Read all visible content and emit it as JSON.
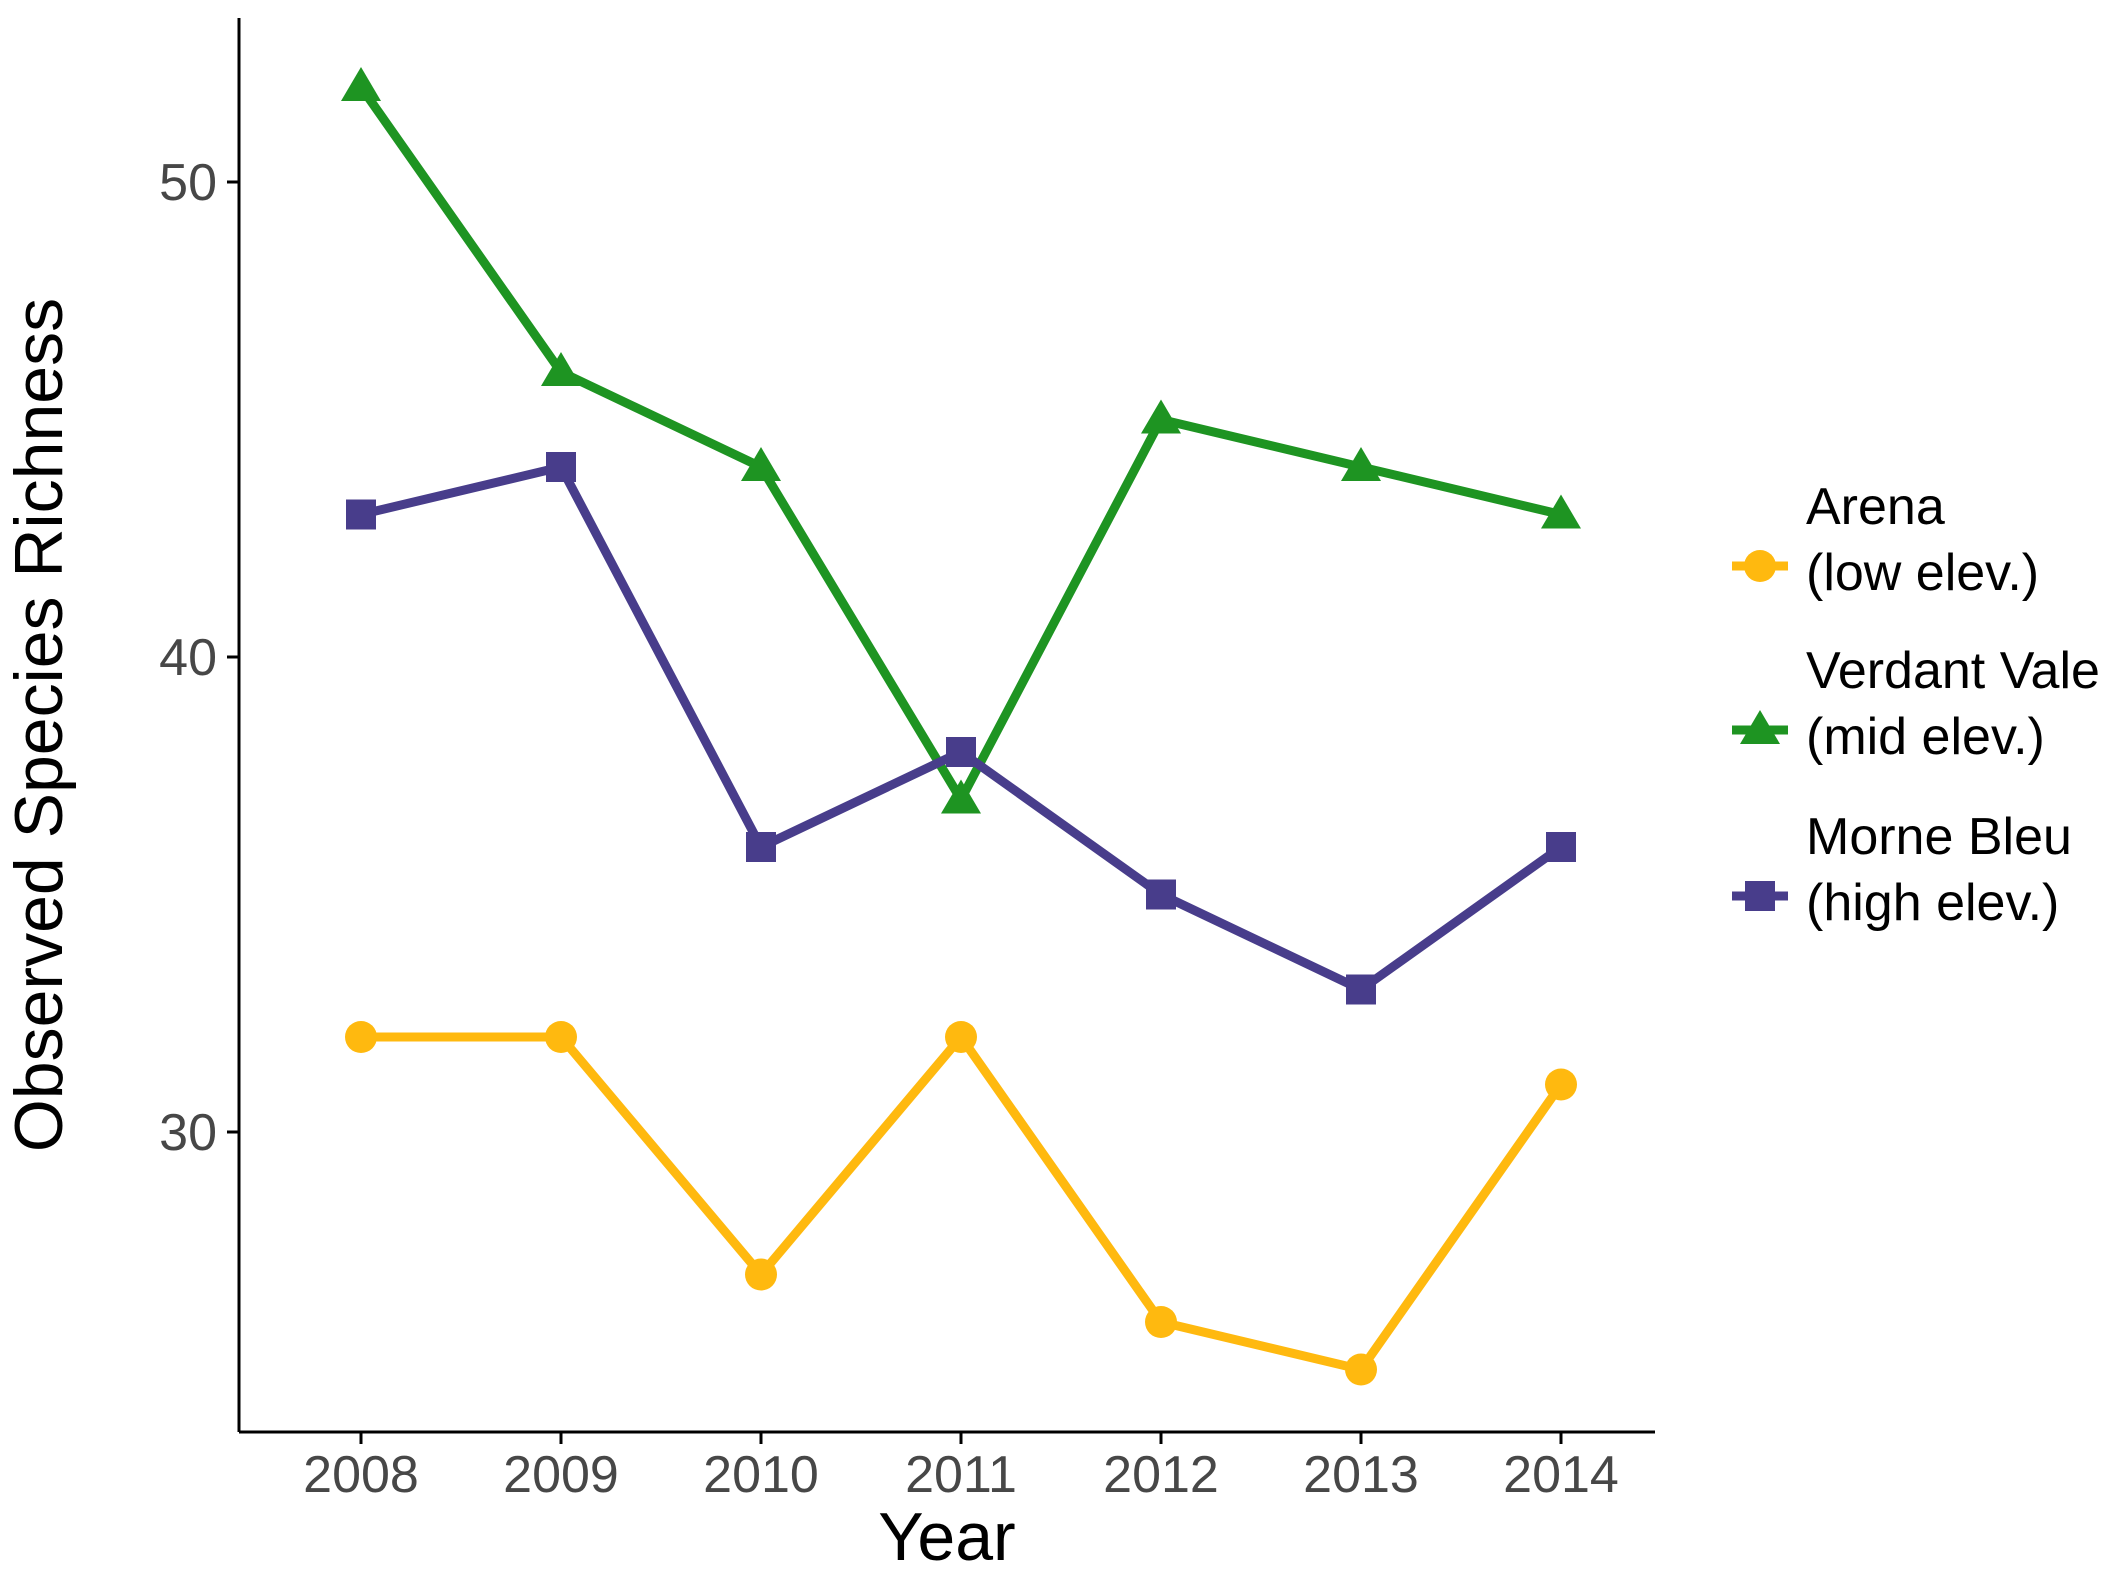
{
  "figure": {
    "background_color": "#ffffff",
    "axis_line_color": "#000000",
    "tick_label_color": "#474747",
    "axis_title_color": "#000000",
    "legend_text_color": "#000000"
  },
  "chart_data": {
    "type": "line",
    "title": "",
    "xlabel": "Year",
    "ylabel": "Observed Species Richness",
    "x": [
      2008,
      2009,
      2010,
      2011,
      2012,
      2013,
      2014
    ],
    "x_tick_labels": [
      "2008",
      "2009",
      "2010",
      "2011",
      "2012",
      "2013",
      "2014"
    ],
    "y_ticks": [
      30,
      40,
      50
    ],
    "y_tick_labels": [
      "30",
      "40",
      "50"
    ],
    "ylim": [
      23.7,
      53.5
    ],
    "xlim": [
      2007.4,
      2014.5
    ],
    "grid": false,
    "legend_position": "right",
    "series": [
      {
        "name": "Arena",
        "label_lines": [
          "Arena",
          "(low elev.)"
        ],
        "color": "#FFB90F",
        "marker": "circle",
        "values": [
          32,
          32,
          27,
          32,
          26,
          25,
          31
        ]
      },
      {
        "name": "Verdant Vale",
        "label_lines": [
          "Verdant Vale",
          "(mid elev.)"
        ],
        "color": "#1E9422",
        "marker": "triangle",
        "values": [
          52,
          46,
          44,
          37,
          45,
          44,
          43
        ]
      },
      {
        "name": "Morne Bleu",
        "label_lines": [
          "Morne Bleu",
          "(high elev.)"
        ],
        "color": "#483D8B",
        "marker": "square",
        "values": [
          43,
          44,
          36,
          38,
          35,
          33,
          36
        ]
      }
    ]
  }
}
